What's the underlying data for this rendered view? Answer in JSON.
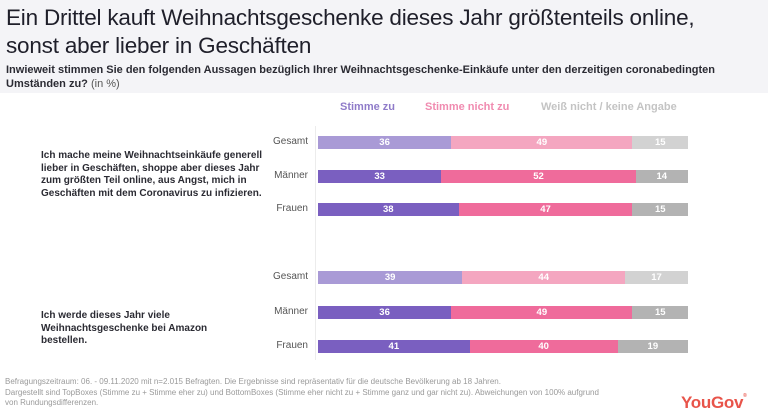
{
  "header": {
    "title": "Ein Drittel kauft Weihnachtsgeschenke dieses Jahr größtenteils online, sonst aber lieber in Geschäften",
    "subtitle": "Inwieweit stimmen Sie den folgenden Aussagen bezüglich Ihrer Weihnachtsgeschenke-Einkäufe unter den derzeitigen coronabedingten Umständen zu?",
    "unit": " (in %)"
  },
  "colors": {
    "agree_total": "#a99ad6",
    "agree_group": "#7a5fc0",
    "disagree_total": "#f4a6c0",
    "disagree_group": "#ef6b9b",
    "unknown_total": "#d2d2d2",
    "unknown_group": "#b3b3b3",
    "legend_agree": "#8f7bc9",
    "legend_disagree": "#f08bb0",
    "legend_unknown": "#c4c4c4",
    "brand": "#e8544a"
  },
  "chart_data": {
    "type": "bar",
    "orientation": "horizontal",
    "stacked": true,
    "title": "Ein Drittel kauft Weihnachtsgeschenke dieses Jahr größtenteils online, sonst aber lieber in Geschäften",
    "unit": "%",
    "legend": [
      "Stimme zu",
      "Stimme nicht zu",
      "Weiß nicht / keine Angabe"
    ],
    "legend_position": "top",
    "groups": [
      {
        "statement": "Ich mache meine Weihnachtseinkäufe generell lieber in Geschäften, shoppe aber dieses Jahr zum größten Teil online, aus Angst, mich in Geschäften mit dem Coronavirus zu infizieren.",
        "categories": [
          "Gesamt",
          "Männer",
          "Frauen"
        ],
        "series": [
          {
            "name": "Stimme zu",
            "values": [
              36,
              33,
              38
            ]
          },
          {
            "name": "Stimme nicht zu",
            "values": [
              49,
              52,
              47
            ]
          },
          {
            "name": "Weiß nicht / keine Angabe",
            "values": [
              15,
              14,
              15
            ]
          }
        ]
      },
      {
        "statement": "Ich werde dieses Jahr viele Weihnachtsgeschenke bei Amazon bestellen.",
        "categories": [
          "Gesamt",
          "Männer",
          "Frauen"
        ],
        "series": [
          {
            "name": "Stimme zu",
            "values": [
              39,
              36,
              41
            ]
          },
          {
            "name": "Stimme nicht zu",
            "values": [
              44,
              49,
              40
            ]
          },
          {
            "name": "Weiß nicht / keine Angabe",
            "values": [
              17,
              15,
              19
            ]
          }
        ]
      }
    ]
  },
  "footer": {
    "line1": "Befragungszeitraum: 06. - 09.11.2020 mit n=2.015 Befragten. Die Ergebnisse sind repräsentativ für die deutsche Bevölkerung ab 18 Jahren.",
    "line2": "Dargestellt sind TopBoxes (Stimme zu + Stimme eher zu) und BottomBoxes (Stimme eher nicht zu + Stimme ganz und gar nicht zu). Abweichungen von 100% aufgrund",
    "line3": "von Rundungsdifferenzen."
  },
  "brand": {
    "logo_text": "YouGov",
    "logo_mark": "®"
  }
}
